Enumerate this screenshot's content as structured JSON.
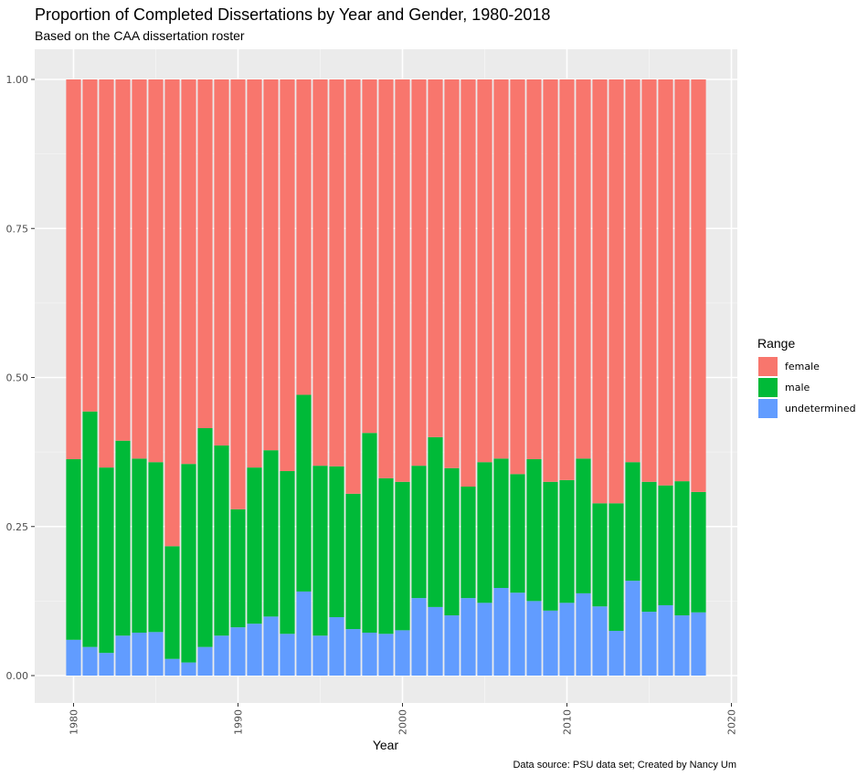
{
  "chart_data": {
    "type": "bar",
    "stacked": true,
    "position": "fill",
    "title": "Proportion of Completed Dissertations by Year and Gender, 1980-2018",
    "subtitle": "Based on the CAA dissertation roster",
    "caption": "Data source: PSU data set; Created by Nancy Um",
    "xlabel": "Year",
    "ylabel": "",
    "xlim": [
      1977.5,
      2020.4
    ],
    "ylim": [
      -0.05,
      1.05
    ],
    "x_ticks": [
      1980,
      1990,
      2000,
      2010,
      2020
    ],
    "x_tick_labels": [
      "1980",
      "1990",
      "2000",
      "2010",
      "2020"
    ],
    "y_ticks": [
      0,
      0.25,
      0.5,
      0.75,
      1.0
    ],
    "y_tick_labels": [
      "0.00",
      "0.25",
      "0.50",
      "0.75",
      "1.00"
    ],
    "grid": true,
    "legend": {
      "title": "Range",
      "position": "right"
    },
    "categories": [
      1980,
      1981,
      1982,
      1983,
      1984,
      1985,
      1986,
      1987,
      1988,
      1989,
      1990,
      1991,
      1992,
      1993,
      1994,
      1995,
      1996,
      1997,
      1998,
      1999,
      2000,
      2001,
      2002,
      2003,
      2004,
      2005,
      2006,
      2007,
      2008,
      2009,
      2010,
      2011,
      2012,
      2013,
      2014,
      2015,
      2016,
      2017,
      2018
    ],
    "series": [
      {
        "name": "undetermined",
        "color": "#619CFF",
        "values": [
          0.06,
          0.048,
          0.038,
          0.067,
          0.072,
          0.073,
          0.028,
          0.022,
          0.048,
          0.067,
          0.081,
          0.087,
          0.099,
          0.07,
          0.141,
          0.067,
          0.098,
          0.078,
          0.072,
          0.07,
          0.076,
          0.13,
          0.115,
          0.101,
          0.13,
          0.122,
          0.147,
          0.139,
          0.125,
          0.109,
          0.122,
          0.138,
          0.116,
          0.075,
          0.159,
          0.107,
          0.118,
          0.101,
          0.106
        ]
      },
      {
        "name": "male",
        "color": "#00BA38",
        "values": [
          0.303,
          0.395,
          0.311,
          0.327,
          0.292,
          0.285,
          0.189,
          0.333,
          0.367,
          0.319,
          0.198,
          0.262,
          0.279,
          0.273,
          0.33,
          0.285,
          0.253,
          0.227,
          0.335,
          0.261,
          0.249,
          0.222,
          0.285,
          0.247,
          0.187,
          0.236,
          0.217,
          0.199,
          0.238,
          0.216,
          0.206,
          0.226,
          0.173,
          0.214,
          0.199,
          0.218,
          0.201,
          0.225,
          0.202
        ]
      },
      {
        "name": "female",
        "color": "#F8766D",
        "values": [
          0.637,
          0.557,
          0.651,
          0.606,
          0.636,
          0.642,
          0.783,
          0.645,
          0.585,
          0.614,
          0.721,
          0.651,
          0.622,
          0.657,
          0.529,
          0.648,
          0.649,
          0.695,
          0.593,
          0.669,
          0.675,
          0.648,
          0.6,
          0.652,
          0.683,
          0.642,
          0.636,
          0.662,
          0.637,
          0.675,
          0.672,
          0.636,
          0.711,
          0.711,
          0.642,
          0.675,
          0.681,
          0.674,
          0.692
        ]
      }
    ]
  }
}
